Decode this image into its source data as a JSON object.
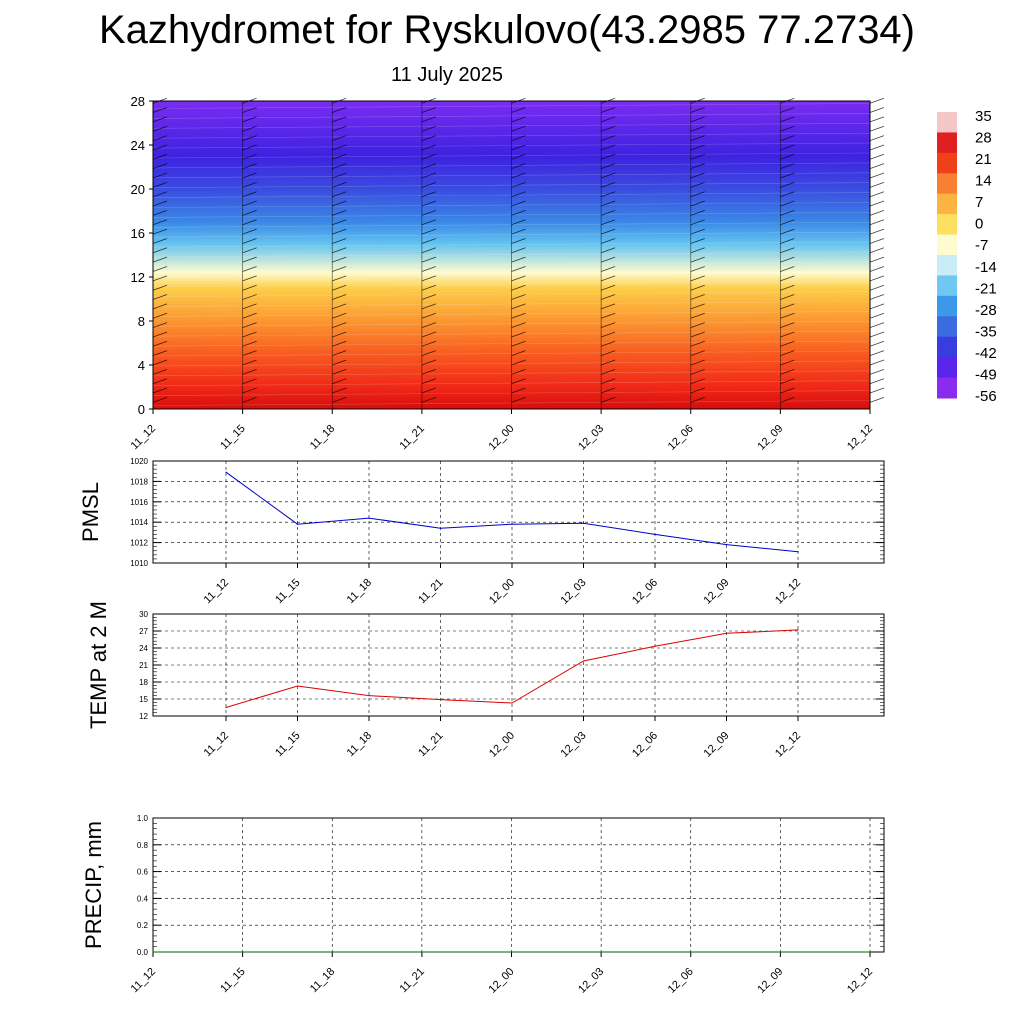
{
  "title": "Kazhydromet for Ryskulovo(43.2985 77.2734)",
  "subtitle": "11 July 2025",
  "chart_data": [
    {
      "type": "heatmap",
      "ylim": [
        0,
        28
      ],
      "yticks": [
        "0",
        "4",
        "8",
        "12",
        "16",
        "20",
        "24",
        "28"
      ],
      "xticks": [
        "11_12",
        "11_15",
        "11_18",
        "11_21",
        "12_00",
        "12_03",
        "12_06",
        "12_09",
        "12_12"
      ],
      "colorbar": {
        "labels": [
          "35",
          "28",
          "21",
          "14",
          "7",
          "0",
          "-7",
          "-14",
          "-21",
          "-28",
          "-35",
          "-42",
          "-49",
          "-56"
        ],
        "colors": [
          "#f3c7c7",
          "#e02020",
          "#f0401a",
          "#f98030",
          "#fbb442",
          "#fde060",
          "#fffbd0",
          "#c8ecf8",
          "#70c8f0",
          "#3c98e8",
          "#3a6ce0",
          "#3b3ce0",
          "#5a24ec",
          "#8a2cf0"
        ]
      },
      "temperature_profile": [
        {
          "height": 0,
          "value": 30,
          "color": "#d60d0d"
        },
        {
          "height": 2,
          "value": 25,
          "color": "#f02818"
        },
        {
          "height": 5,
          "value": 18,
          "color": "#f85a20"
        },
        {
          "height": 8,
          "value": 10,
          "color": "#fb9630"
        },
        {
          "height": 11,
          "value": 2,
          "color": "#fdcf4a"
        },
        {
          "height": 12.4,
          "value": -8,
          "color": "#fffbd0"
        },
        {
          "height": 15,
          "value": -24,
          "color": "#64c4f0"
        },
        {
          "height": 17,
          "value": -33,
          "color": "#3a88e6"
        },
        {
          "height": 20,
          "value": -43,
          "color": "#3a4ce0"
        },
        {
          "height": 23,
          "value": -51,
          "color": "#3d22e0"
        },
        {
          "height": 28,
          "value": -58,
          "color": "#7a2cf2"
        }
      ]
    },
    {
      "type": "line",
      "ylabel": "PMSL",
      "ylim": [
        1010,
        1020
      ],
      "yticks": [
        "1010",
        "1012",
        "1014",
        "1016",
        "1018",
        "1020"
      ],
      "categories": [
        "11_12",
        "11_15",
        "11_18",
        "11_21",
        "12_00",
        "12_03",
        "12_06",
        "12_09",
        "12_12"
      ],
      "series": [
        {
          "values": [
            1018.9,
            1013.8,
            1014.4,
            1013.4,
            1013.8,
            1013.9,
            1012.8,
            1011.8,
            1011.1
          ],
          "color": "#0000cc"
        }
      ]
    },
    {
      "type": "line",
      "ylabel": "TEMP at 2 M",
      "ylim": [
        12,
        30
      ],
      "yticks": [
        "12",
        "15",
        "18",
        "21",
        "24",
        "27",
        "30"
      ],
      "categories": [
        "11_12",
        "11_15",
        "11_18",
        "11_21",
        "12_00",
        "12_03",
        "12_06",
        "12_09",
        "12_12"
      ],
      "series": [
        {
          "values": [
            13.5,
            17.3,
            15.6,
            14.9,
            14.3,
            21.7,
            24.3,
            26.6,
            27.2
          ],
          "color": "#dd0000"
        }
      ]
    },
    {
      "type": "line",
      "ylabel": "PRECIP, mm",
      "ylim": [
        0,
        1
      ],
      "yticks": [
        "0.0",
        "0.2",
        "0.4",
        "0.6",
        "0.8",
        "1.0"
      ],
      "categories": [
        "11_12",
        "11_15",
        "11_18",
        "11_21",
        "12_00",
        "12_03",
        "12_06",
        "12_09",
        "12_12"
      ],
      "series": [
        {
          "values": [
            0,
            0,
            0,
            0,
            0,
            0,
            0,
            0,
            0
          ],
          "color": "#006600"
        }
      ]
    }
  ]
}
